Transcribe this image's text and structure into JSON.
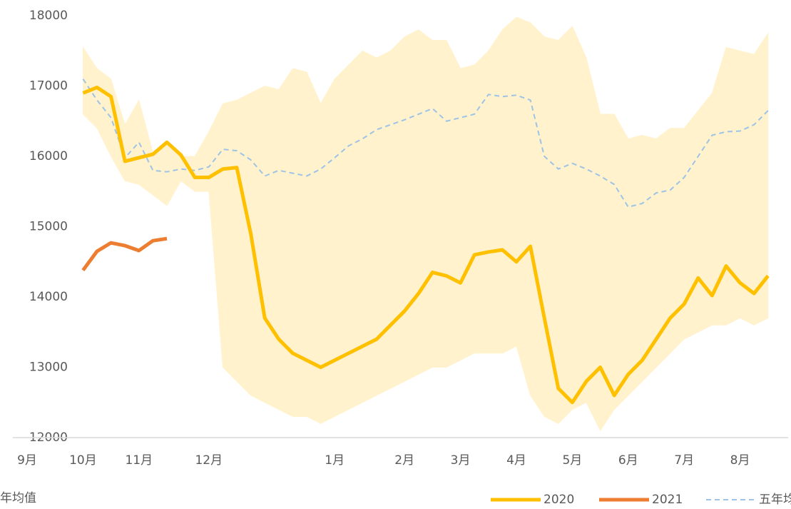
{
  "chart_data": {
    "type": "line",
    "categories": [
      "9月",
      null,
      null,
      null,
      "10月",
      null,
      null,
      null,
      "11月",
      null,
      null,
      null,
      null,
      "12月",
      null,
      null,
      null,
      null,
      null,
      null,
      null,
      null,
      "1月",
      null,
      null,
      null,
      null,
      "2月",
      null,
      null,
      null,
      "3月",
      null,
      null,
      null,
      "4月",
      null,
      null,
      null,
      "5月",
      null,
      null,
      null,
      "6月",
      null,
      null,
      null,
      "7月",
      null,
      null,
      null,
      "8月",
      null,
      null
    ],
    "ylim": [
      12000,
      18000
    ],
    "yticks": [
      12000,
      13000,
      14000,
      15000,
      16000,
      17000,
      18000
    ],
    "range": {
      "color": "#fff2cc",
      "upper": [
        null,
        null,
        null,
        null,
        17550,
        17250,
        17100,
        16450,
        16800,
        16050,
        16200,
        16000,
        16000,
        16350,
        16750,
        16800,
        16900,
        17000,
        16950,
        17250,
        17200,
        16750,
        17100,
        17300,
        17500,
        17400,
        17500,
        17700,
        17800,
        17650,
        17650,
        17250,
        17300,
        17500,
        17800,
        17980,
        17900,
        17700,
        17650,
        17850,
        17400,
        16600,
        16600,
        16250,
        16300,
        16250,
        16400,
        16400,
        16650,
        16900,
        17550,
        17500,
        17450,
        17750
      ],
      "lower": [
        null,
        null,
        null,
        null,
        16600,
        16400,
        16000,
        15650,
        15600,
        15450,
        15300,
        15650,
        15500,
        15500,
        13000,
        12800,
        12600,
        12500,
        12400,
        12300,
        12300,
        12200,
        12300,
        12400,
        12500,
        12600,
        12700,
        12800,
        12900,
        13000,
        13000,
        13100,
        13200,
        13200,
        13200,
        13300,
        12600,
        12300,
        12200,
        12400,
        12500,
        12100,
        12400,
        12600,
        12800,
        13000,
        13200,
        13400,
        13500,
        13600,
        13600,
        13700,
        13600,
        13700
      ]
    },
    "series": [
      {
        "name": "2020",
        "color": "#ffc000",
        "dashed": false,
        "values": [
          null,
          null,
          null,
          null,
          16900,
          16980,
          16850,
          15930,
          15980,
          16030,
          16200,
          16020,
          15700,
          15700,
          15820,
          15840,
          14900,
          13700,
          13400,
          13200,
          13100,
          13000,
          13100,
          13200,
          13300,
          13400,
          13600,
          13800,
          14050,
          14350,
          14300,
          14200,
          14600,
          14640,
          14670,
          14500,
          14720,
          13700,
          12700,
          12500,
          12800,
          13000,
          12600,
          12900,
          13100,
          13400,
          13700,
          13900,
          14270,
          14020,
          14440,
          14200,
          14050,
          14300
        ]
      },
      {
        "name": "2021",
        "color": "#ed7d31",
        "dashed": false,
        "values": [
          null,
          null,
          null,
          null,
          14380,
          14650,
          14770,
          14730,
          14660,
          14800,
          14830,
          null,
          null,
          null,
          null,
          null,
          null,
          null,
          null,
          null,
          null,
          null,
          null,
          null,
          null,
          null,
          null,
          null,
          null,
          null,
          null,
          null,
          null,
          null,
          null,
          null,
          null,
          null,
          null,
          null,
          null,
          null,
          null,
          null,
          null,
          null,
          null,
          null,
          null,
          null,
          null,
          null,
          null,
          null
        ]
      },
      {
        "name": "五年均值",
        "color": "#9dc3e6",
        "dashed": true,
        "values": [
          null,
          null,
          null,
          null,
          17100,
          16800,
          16550,
          15980,
          16200,
          15800,
          15780,
          15820,
          15800,
          15850,
          16100,
          16080,
          15950,
          15720,
          15800,
          15760,
          15720,
          15820,
          15980,
          16150,
          16250,
          16380,
          16450,
          16520,
          16600,
          16680,
          16500,
          16550,
          16600,
          16880,
          16850,
          16870,
          16800,
          16000,
          15820,
          15900,
          15820,
          15720,
          15600,
          15280,
          15330,
          15480,
          15520,
          15700,
          16000,
          16300,
          16350,
          16360,
          16450,
          16650
        ]
      }
    ],
    "legend_wrap_text": "年均值"
  }
}
